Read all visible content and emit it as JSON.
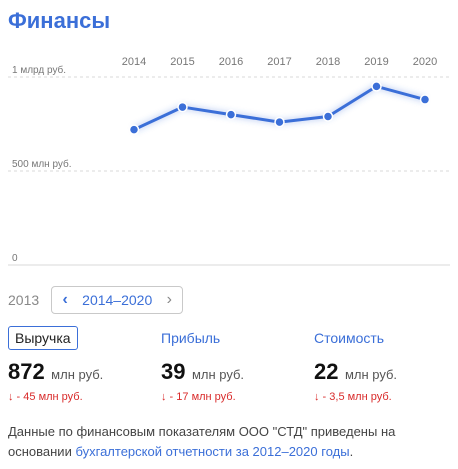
{
  "title": "Финансы",
  "chart_data": {
    "type": "line",
    "x": [
      "2014",
      "2015",
      "2016",
      "2017",
      "2018",
      "2019",
      "2020"
    ],
    "series": [
      {
        "values": [
          720,
          840,
          800,
          760,
          790,
          950,
          880
        ]
      }
    ],
    "y_ticks": [
      {
        "value": 1000,
        "label": "1 млрд руб."
      },
      {
        "value": 500,
        "label": "500 млн руб."
      },
      {
        "value": 0,
        "label": "0"
      }
    ],
    "ylim": [
      0,
      1000
    ],
    "grid": true,
    "color": "#3b6fd8"
  },
  "period": {
    "prev_year": "2013",
    "range_label": "2014–2020",
    "prev_icon": "chevron-left-icon",
    "next_icon": "chevron-right-icon"
  },
  "metrics": [
    {
      "tab": "Выручка",
      "value": "872",
      "unit": "млн руб.",
      "delta": "↓ - 45 млн руб."
    },
    {
      "tab": "Прибыль",
      "value": "39",
      "unit": "млн руб.",
      "delta": "↓ - 17 млн руб."
    },
    {
      "tab": "Стоимость",
      "value": "22",
      "unit": "млн руб.",
      "delta": "↓ - 3,5 млн руб."
    }
  ],
  "note": {
    "text_before": "Данные по финансовым показателям ООО \"СТД\" приведены на основании ",
    "link": "бухгалтерской отчетности за 2012–2020 годы",
    "text_after": "."
  }
}
